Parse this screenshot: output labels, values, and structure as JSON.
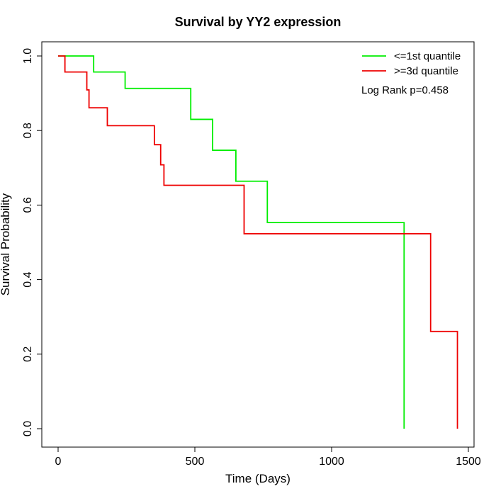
{
  "chart_data": {
    "type": "line",
    "title": "Survival by YY2 expression",
    "xlabel": "Time (Days)",
    "ylabel": "Survival Probability",
    "xlim": [
      0,
      1500
    ],
    "ylim": [
      0,
      1
    ],
    "xticks": [
      0,
      500,
      1000,
      1500
    ],
    "yticks": [
      0.0,
      0.2,
      0.4,
      0.6,
      0.8,
      1.0
    ],
    "xtick_labels": [
      "0",
      "500",
      "1000",
      "1500"
    ],
    "ytick_labels": [
      "0.0",
      "0.2",
      "0.4",
      "0.6",
      "0.8",
      "1.0"
    ],
    "grid": false,
    "legend_position": "top-right",
    "annotation": "Log Rank p=0.458",
    "series": [
      {
        "name": "<=1st quantile",
        "color": "#00ee00",
        "step": true,
        "x": [
          0,
          130,
          245,
          485,
          565,
          650,
          765,
          1265,
          1265
        ],
        "y": [
          1.0,
          0.957,
          0.913,
          0.83,
          0.747,
          0.664,
          0.553,
          0.553,
          0.0
        ]
      },
      {
        "name": ">=3d quantile",
        "color": "#ee0000",
        "step": true,
        "x": [
          0,
          25,
          105,
          113,
          180,
          352,
          375,
          387,
          680,
          1362,
          1460,
          1460
        ],
        "y": [
          1.0,
          0.957,
          0.909,
          0.861,
          0.813,
          0.762,
          0.708,
          0.653,
          0.523,
          0.261,
          0.261,
          0.0
        ]
      }
    ]
  }
}
